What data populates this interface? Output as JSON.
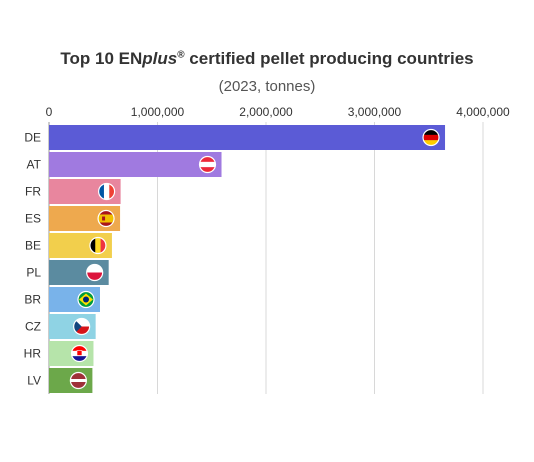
{
  "title": {
    "prefix": "Top 10 EN",
    "plus": "plus",
    "reg": "®",
    "suffix": " certified pellet producing countries"
  },
  "subtitle": "(2023, tonnes)",
  "chart_data": {
    "type": "bar",
    "orientation": "horizontal",
    "title": "Top 10 ENplus® certified pellet producing countries",
    "subtitle": "(2023, tonnes)",
    "xlim": [
      0,
      4000000
    ],
    "x_ticks": [
      0,
      1000000,
      2000000,
      3000000,
      4000000
    ],
    "x_tick_labels": [
      "0",
      "1,000,000",
      "2,000,000",
      "3,000,000",
      "4,000,000"
    ],
    "x_axis_position": "top",
    "grid": true,
    "categories": [
      "DE",
      "AT",
      "FR",
      "ES",
      "BE",
      "PL",
      "BR",
      "CZ",
      "HR",
      "LV"
    ],
    "values": [
      3650000,
      1590000,
      660000,
      655000,
      580000,
      550000,
      470000,
      430000,
      410000,
      400000
    ],
    "colors": [
      "#5b5bd6",
      "#a07ae0",
      "#e8869e",
      "#eea94e",
      "#f2cf4c",
      "#5b8ba0",
      "#79b3ea",
      "#8fd3e4",
      "#b6e4aa",
      "#6ca84a"
    ],
    "flags": [
      "germany-flag",
      "austria-flag",
      "france-flag",
      "spain-flag",
      "belgium-flag",
      "poland-flag",
      "brazil-flag",
      "czechia-flag",
      "croatia-flag",
      "latvia-flag"
    ]
  }
}
